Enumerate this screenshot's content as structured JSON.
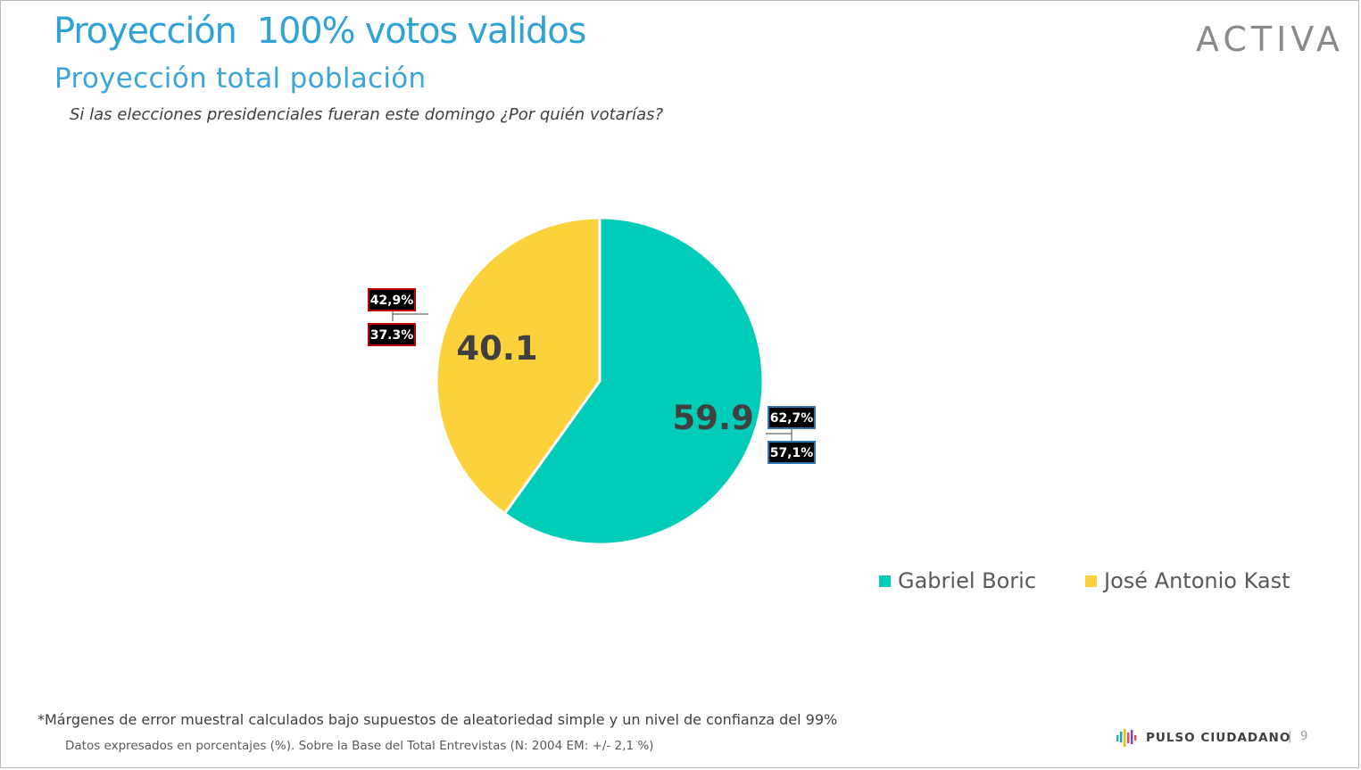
{
  "header": {
    "title": "Proyección  100% votos validos",
    "subtitle": "Proyección total población",
    "question": "Si las elecciones presidenciales fueran este domingo ¿Por quién votarías?",
    "logo_text": "ACTIVA"
  },
  "chart_data": {
    "type": "pie",
    "categories": [
      "Gabriel Boric",
      "José Antonio Kast"
    ],
    "values": [
      59.9,
      40.1
    ],
    "colors": [
      "#00CCB7",
      "#FCD23C"
    ],
    "data_labels": [
      "59.9",
      "40.1"
    ],
    "ranges": [
      {
        "high": "62,7%",
        "low": "57,1%",
        "border_color": "#2E75B6"
      },
      {
        "high": "42,9%",
        "low": "37.3%",
        "border_color": "#C00000"
      }
    ],
    "legend_placement": "bottom-right"
  },
  "footer": {
    "footnote": "*Márgenes de error muestral calculados bajo supuestos de aleatoriedad simple y un nivel de confianza del 99%",
    "source": "Datos expresados en porcentajes (%). Sobre la Base del Total Entrevistas (N: 2004  EM: +/- 2,1 %)",
    "brand": "PULSO CIUDADANO",
    "separator": "|",
    "page_number": "9"
  }
}
